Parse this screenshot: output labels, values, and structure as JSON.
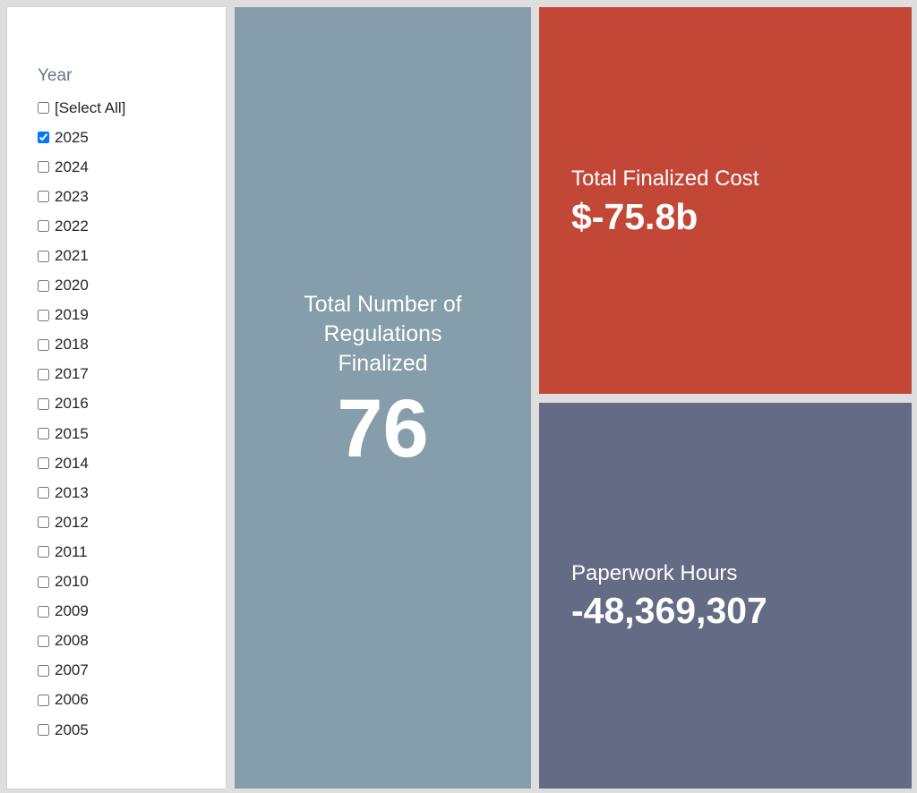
{
  "filter": {
    "title": "Year",
    "options": [
      {
        "label": "[Select All]",
        "checked": false
      },
      {
        "label": "2025",
        "checked": true
      },
      {
        "label": "2024",
        "checked": false
      },
      {
        "label": "2023",
        "checked": false
      },
      {
        "label": "2022",
        "checked": false
      },
      {
        "label": "2021",
        "checked": false
      },
      {
        "label": "2020",
        "checked": false
      },
      {
        "label": "2019",
        "checked": false
      },
      {
        "label": "2018",
        "checked": false
      },
      {
        "label": "2017",
        "checked": false
      },
      {
        "label": "2016",
        "checked": false
      },
      {
        "label": "2015",
        "checked": false
      },
      {
        "label": "2014",
        "checked": false
      },
      {
        "label": "2013",
        "checked": false
      },
      {
        "label": "2012",
        "checked": false
      },
      {
        "label": "2011",
        "checked": false
      },
      {
        "label": "2010",
        "checked": false
      },
      {
        "label": "2009",
        "checked": false
      },
      {
        "label": "2008",
        "checked": false
      },
      {
        "label": "2007",
        "checked": false
      },
      {
        "label": "2006",
        "checked": false
      },
      {
        "label": "2005",
        "checked": false
      }
    ]
  },
  "cards": {
    "count": {
      "label": "Total Number of Regulations Finalized",
      "value": "76",
      "color": "#869dab"
    },
    "cost": {
      "label": "Total Finalized Cost",
      "value": "$-75.8b",
      "color": "#c34737"
    },
    "hours": {
      "label": "Paperwork Hours",
      "value": "-48,369,307",
      "color": "#636b85"
    }
  }
}
